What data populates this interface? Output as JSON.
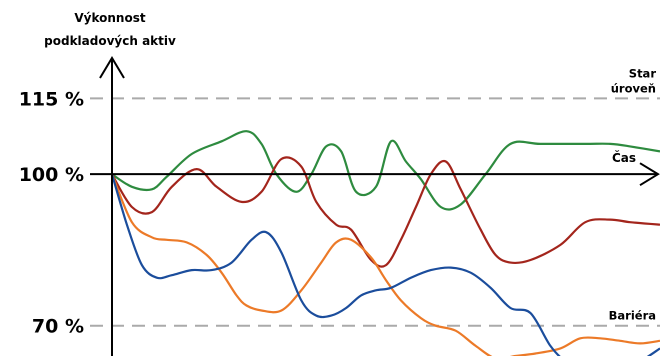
{
  "chart_data": {
    "type": "line",
    "ylabel_lines": [
      "Výkonnost",
      "podkladových aktiv"
    ],
    "xlabel": "Čas",
    "y_ticks": [
      {
        "label": "115 %",
        "value": 115
      },
      {
        "label": "100 %",
        "value": 100
      },
      {
        "label": "70 %",
        "value": 70
      }
    ],
    "reference_lines": [
      {
        "name": "start_level",
        "label_lines": [
          "Star",
          "úroveň"
        ],
        "value": 115
      },
      {
        "name": "barrier",
        "label_lines": [
          "Bariéra"
        ],
        "value": 70
      }
    ],
    "ylim": [
      64,
      123
    ],
    "xlim": [
      0,
      110
    ],
    "colors": {
      "axis": "#000000",
      "reference": "#aaaaaa",
      "green": "#2e8b3f",
      "red": "#a3251c",
      "orange": "#ec7a28",
      "blue": "#1b4d9c"
    },
    "series": [
      {
        "key": "green",
        "x": [
          0,
          4,
          8,
          11,
          16,
          22,
          27,
          30,
          33,
          37,
          40,
          43,
          46,
          49,
          53,
          56,
          59,
          62,
          66,
          70,
          75,
          80,
          86,
          95,
          100,
          104,
          110
        ],
        "y": [
          100,
          97.5,
          97,
          99.5,
          104,
          106.5,
          108.5,
          106,
          100,
          96.5,
          100,
          105.5,
          104.5,
          96.5,
          97.5,
          106.5,
          102.5,
          99,
          93.5,
          94,
          100,
          106,
          106,
          106,
          106,
          105.5,
          104.5
        ]
      },
      {
        "key": "red",
        "x": [
          0,
          4,
          8,
          12,
          17,
          21,
          26,
          30,
          34,
          38,
          41,
          45,
          48,
          52,
          55,
          58,
          61,
          64,
          67,
          70,
          74,
          77,
          80,
          84,
          90,
          95,
          100,
          104,
          110
        ],
        "y": [
          100,
          93.5,
          92.5,
          97.5,
          101,
          97.5,
          94.5,
          96.5,
          103,
          101.5,
          94.5,
          90,
          89,
          83,
          82,
          87,
          93.5,
          100,
          102.5,
          97,
          89,
          84,
          82.5,
          83,
          86,
          90.5,
          91,
          90.5,
          90
        ]
      },
      {
        "key": "orange",
        "x": [
          0,
          4,
          8,
          11,
          15,
          19,
          22,
          25,
          27,
          30,
          34,
          38,
          42,
          45,
          48,
          52,
          55,
          58,
          62,
          65,
          69,
          73,
          77,
          81,
          85,
          90,
          94,
          98,
          102,
          106,
          110
        ],
        "y": [
          100,
          90.5,
          87.5,
          87,
          86.5,
          84,
          80.5,
          76,
          74,
          73,
          73,
          77,
          82.5,
          86.5,
          87,
          83.5,
          79,
          75,
          71.5,
          70,
          69,
          66,
          63.5,
          64,
          64.5,
          65.5,
          67.5,
          67.5,
          67,
          66.5,
          67
        ]
      },
      {
        "key": "blue",
        "x": [
          0,
          3,
          6,
          9,
          12,
          16,
          20,
          24,
          28,
          31,
          34,
          38,
          41,
          44,
          47,
          50,
          53,
          56,
          60,
          64,
          68,
          72,
          76,
          80,
          84,
          88,
          91,
          94,
          98,
          102,
          106,
          110
        ],
        "y": [
          100,
          90,
          82,
          79.5,
          80,
          81,
          81,
          82.5,
          87,
          88.5,
          84.5,
          75,
          72,
          72,
          73.5,
          76,
          77,
          77.5,
          79.5,
          81,
          81.5,
          80.5,
          77.5,
          73.5,
          72.5,
          66,
          63,
          62,
          63,
          62,
          63,
          65.5
        ]
      }
    ]
  }
}
